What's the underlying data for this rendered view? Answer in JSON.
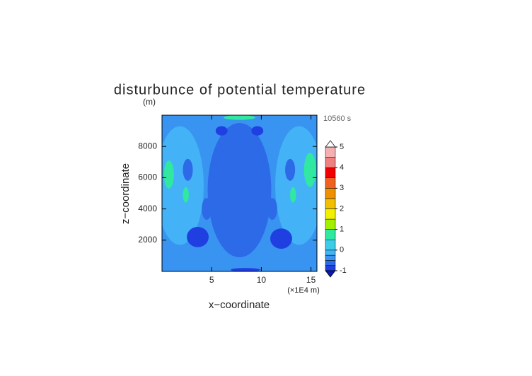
{
  "chart_data": {
    "type": "contour",
    "title": "disturbunce of potential temperature",
    "y_unit": "(m)",
    "time_label": "10560 s",
    "xlabel": "x−coordinate",
    "ylabel": "z−coordinate",
    "x_unit": "(×1E4 m)",
    "xlim": [
      0,
      15.6
    ],
    "ylim": [
      0,
      10000
    ],
    "xticks": [
      5,
      10,
      15
    ],
    "yticks": [
      2000,
      4000,
      6000,
      8000
    ],
    "background_value": -0.4,
    "colorbar": {
      "levels": [
        -1,
        -0.75,
        -0.5,
        -0.25,
        0,
        0.5,
        1,
        1.5,
        2,
        2.5,
        3,
        3.5,
        4,
        4.5,
        5
      ],
      "colors": [
        "#1f3fe0",
        "#2c6ae8",
        "#3894f0",
        "#44b2f6",
        "#3ccce8",
        "#30e8a0",
        "#a0f000",
        "#f0f000",
        "#f0c000",
        "#f09000",
        "#f06020",
        "#f00000",
        "#f08080",
        "#f4b0b0"
      ],
      "under_color": "#0a18b0",
      "over_color": "#ffffff",
      "ticks": [
        -1,
        0,
        1,
        2,
        3,
        4,
        5
      ]
    },
    "regions": [
      {
        "value": -0.2,
        "x": 1.8,
        "y": 5500,
        "rx": 2.4,
        "ry": 3800
      },
      {
        "value": -0.2,
        "x": 13.8,
        "y": 5500,
        "rx": 2.4,
        "ry": 3800
      },
      {
        "value": -0.6,
        "x": 7.8,
        "y": 5200,
        "rx": 3.2,
        "ry": 4300
      },
      {
        "value": -0.6,
        "x": 2.6,
        "y": 6500,
        "rx": 0.5,
        "ry": 700
      },
      {
        "value": -0.6,
        "x": 12.9,
        "y": 6500,
        "rx": 0.5,
        "ry": 700
      },
      {
        "value": -0.6,
        "x": 4.5,
        "y": 4000,
        "rx": 0.5,
        "ry": 700
      },
      {
        "value": -0.6,
        "x": 11.1,
        "y": 4000,
        "rx": 0.5,
        "ry": 700
      },
      {
        "value": 0.7,
        "x": 0.7,
        "y": 6200,
        "rx": 0.5,
        "ry": 900
      },
      {
        "value": 0.7,
        "x": 14.9,
        "y": 6500,
        "rx": 0.6,
        "ry": 1100
      },
      {
        "value": 0.7,
        "x": 2.4,
        "y": 4900,
        "rx": 0.3,
        "ry": 500
      },
      {
        "value": 0.7,
        "x": 13.2,
        "y": 4900,
        "rx": 0.3,
        "ry": 500
      },
      {
        "value": 0.7,
        "x": 7.8,
        "y": 9850,
        "rx": 1.6,
        "ry": 150
      },
      {
        "value": -0.9,
        "x": 3.6,
        "y": 2200,
        "rx": 1.1,
        "ry": 650
      },
      {
        "value": -0.9,
        "x": 12.0,
        "y": 2100,
        "rx": 1.1,
        "ry": 650
      },
      {
        "value": -0.9,
        "x": 6.0,
        "y": 9000,
        "rx": 0.6,
        "ry": 300
      },
      {
        "value": -0.9,
        "x": 9.6,
        "y": 9000,
        "rx": 0.6,
        "ry": 300
      },
      {
        "value": -0.9,
        "x": 8.4,
        "y": 100,
        "rx": 1.5,
        "ry": 120
      }
    ]
  }
}
